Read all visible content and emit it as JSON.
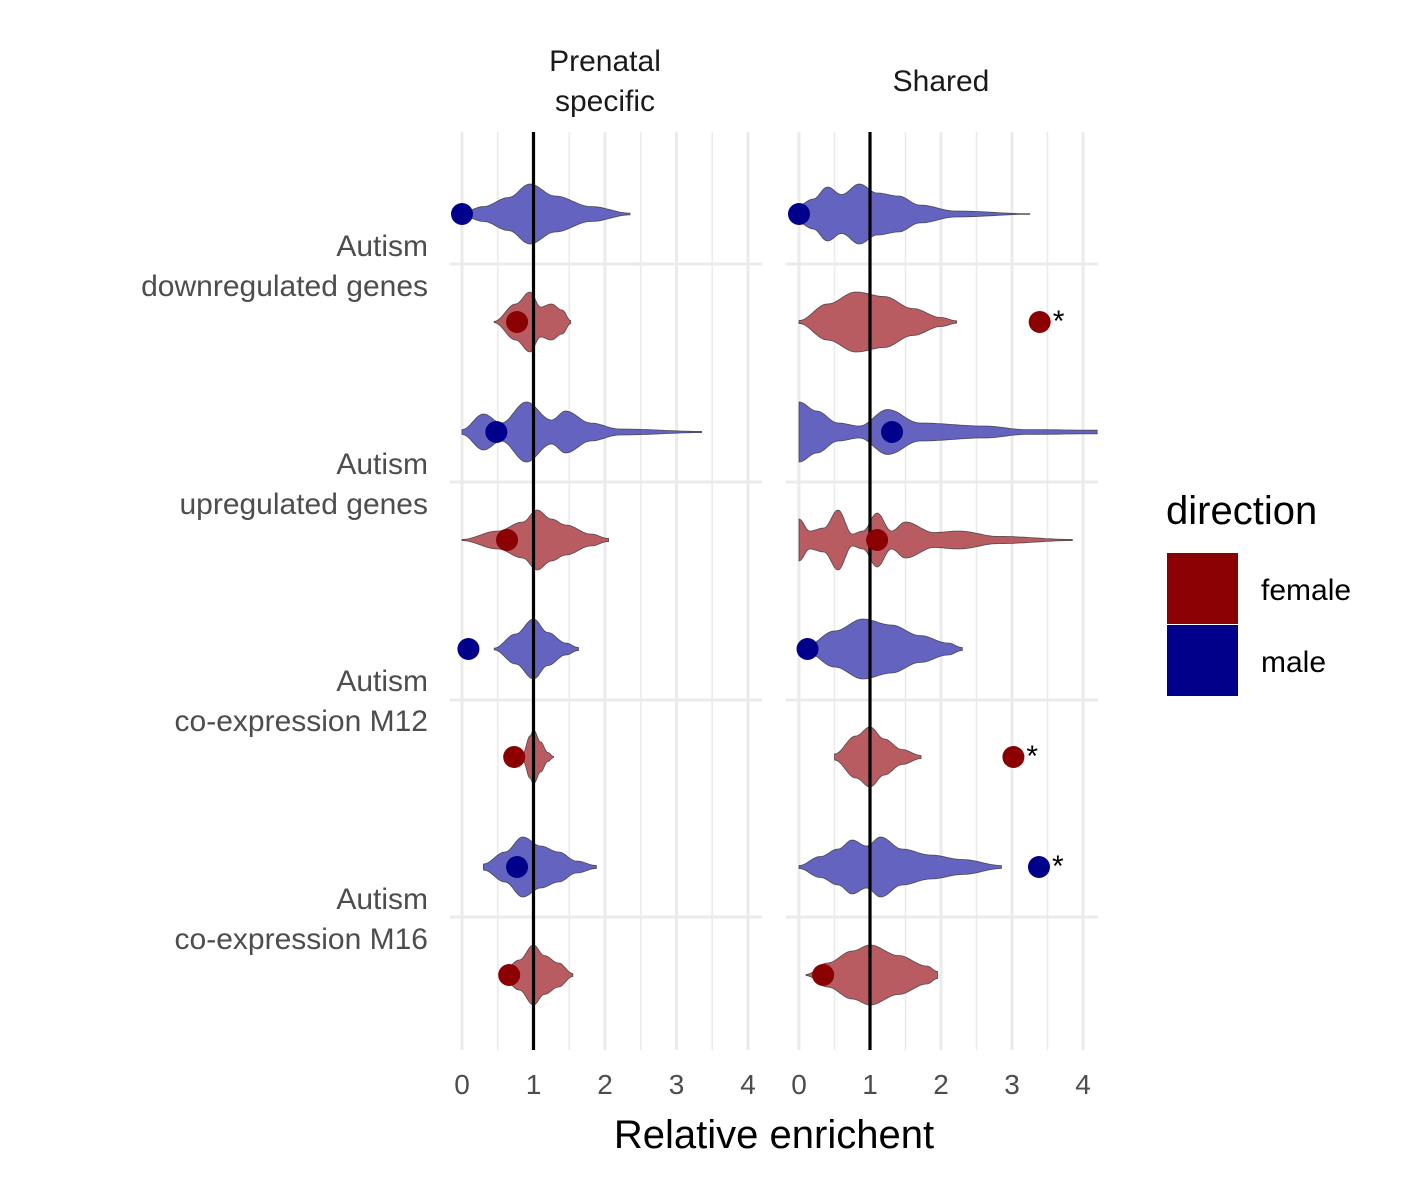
{
  "chart_data": {
    "type": "violin",
    "title": "",
    "xlabel": "Relative enrichent",
    "ylabel": "",
    "xlim": [
      0,
      4
    ],
    "xticks": [
      "0",
      "1",
      "2",
      "3",
      "4"
    ],
    "reference_line_x": 1,
    "grid": true,
    "facets": [
      "Prenatal\nspecific",
      "Shared"
    ],
    "categories": [
      "Autism\ndownregulated genes",
      "Autism\nupregulated genes",
      "Autism\nco-expression M12",
      "Autism\nco-expression M16"
    ],
    "legend": {
      "title": "direction",
      "position": "right",
      "entries": [
        {
          "label": "female",
          "color": "#8B0000"
        },
        {
          "label": "male",
          "color": "#00008B"
        }
      ]
    },
    "violin_colors": {
      "female": "#B85C62",
      "male": "#6464C0"
    },
    "significance_marker": "*",
    "observed": [
      {
        "facet": 0,
        "category": 0,
        "direction": "male",
        "x": 0.0,
        "sig": false
      },
      {
        "facet": 0,
        "category": 0,
        "direction": "female",
        "x": 0.77,
        "sig": false
      },
      {
        "facet": 0,
        "category": 1,
        "direction": "male",
        "x": 0.48,
        "sig": false
      },
      {
        "facet": 0,
        "category": 1,
        "direction": "female",
        "x": 0.63,
        "sig": false
      },
      {
        "facet": 0,
        "category": 2,
        "direction": "male",
        "x": 0.09,
        "sig": false
      },
      {
        "facet": 0,
        "category": 2,
        "direction": "female",
        "x": 0.73,
        "sig": false
      },
      {
        "facet": 0,
        "category": 3,
        "direction": "male",
        "x": 0.77,
        "sig": false
      },
      {
        "facet": 0,
        "category": 3,
        "direction": "female",
        "x": 0.66,
        "sig": false
      },
      {
        "facet": 1,
        "category": 0,
        "direction": "male",
        "x": 0.0,
        "sig": false
      },
      {
        "facet": 1,
        "category": 0,
        "direction": "female",
        "x": 3.39,
        "sig": true
      },
      {
        "facet": 1,
        "category": 1,
        "direction": "male",
        "x": 1.31,
        "sig": false
      },
      {
        "facet": 1,
        "category": 1,
        "direction": "female",
        "x": 1.1,
        "sig": false
      },
      {
        "facet": 1,
        "category": 2,
        "direction": "male",
        "x": 0.12,
        "sig": false
      },
      {
        "facet": 1,
        "category": 2,
        "direction": "female",
        "x": 3.02,
        "sig": true
      },
      {
        "facet": 1,
        "category": 3,
        "direction": "male",
        "x": 3.38,
        "sig": true
      },
      {
        "facet": 1,
        "category": 3,
        "direction": "female",
        "x": 0.34,
        "sig": false
      }
    ],
    "null_distributions": [
      {
        "facet": 0,
        "category": 0,
        "direction": "male",
        "profile": [
          [
            0,
            0.05
          ],
          [
            0.3,
            0.25
          ],
          [
            0.65,
            0.55
          ],
          [
            0.95,
            1.0
          ],
          [
            1.3,
            0.6
          ],
          [
            1.8,
            0.25
          ],
          [
            2.35,
            0.03
          ]
        ]
      },
      {
        "facet": 0,
        "category": 0,
        "direction": "female",
        "profile": [
          [
            0.45,
            0.02
          ],
          [
            0.75,
            0.6
          ],
          [
            0.95,
            1.0
          ],
          [
            1.1,
            0.5
          ],
          [
            1.25,
            0.6
          ],
          [
            1.4,
            0.4
          ],
          [
            1.52,
            0.05
          ]
        ]
      },
      {
        "facet": 0,
        "category": 1,
        "direction": "male",
        "profile": [
          [
            0,
            0.08
          ],
          [
            0.3,
            0.6
          ],
          [
            0.55,
            0.3
          ],
          [
            0.9,
            1.0
          ],
          [
            1.25,
            0.4
          ],
          [
            1.45,
            0.7
          ],
          [
            1.8,
            0.3
          ],
          [
            2.2,
            0.1
          ],
          [
            3.35,
            0.02
          ]
        ]
      },
      {
        "facet": 0,
        "category": 1,
        "direction": "female",
        "profile": [
          [
            0,
            0.02
          ],
          [
            0.5,
            0.3
          ],
          [
            0.85,
            0.6
          ],
          [
            1.05,
            1.0
          ],
          [
            1.25,
            0.7
          ],
          [
            1.45,
            0.5
          ],
          [
            1.8,
            0.2
          ],
          [
            2.05,
            0.05
          ]
        ]
      },
      {
        "facet": 0,
        "category": 2,
        "direction": "male",
        "profile": [
          [
            0.45,
            0.03
          ],
          [
            0.75,
            0.5
          ],
          [
            1.0,
            1.0
          ],
          [
            1.2,
            0.55
          ],
          [
            1.45,
            0.2
          ],
          [
            1.63,
            0.05
          ]
        ]
      },
      {
        "facet": 0,
        "category": 2,
        "direction": "female",
        "profile": [
          [
            0.85,
            0.1
          ],
          [
            0.95,
            0.7
          ],
          [
            1.0,
            0.9
          ],
          [
            1.1,
            0.5
          ],
          [
            1.2,
            0.15
          ],
          [
            1.28,
            0.02
          ]
        ]
      },
      {
        "facet": 0,
        "category": 3,
        "direction": "male",
        "profile": [
          [
            0.3,
            0.1
          ],
          [
            0.6,
            0.5
          ],
          [
            0.85,
            1.0
          ],
          [
            1.1,
            0.7
          ],
          [
            1.35,
            0.5
          ],
          [
            1.6,
            0.2
          ],
          [
            1.88,
            0.05
          ]
        ]
      },
      {
        "facet": 0,
        "category": 3,
        "direction": "female",
        "profile": [
          [
            0.55,
            0.05
          ],
          [
            0.8,
            0.5
          ],
          [
            1.0,
            1.0
          ],
          [
            1.15,
            0.65
          ],
          [
            1.35,
            0.4
          ],
          [
            1.55,
            0.05
          ]
        ]
      },
      {
        "facet": 1,
        "category": 0,
        "direction": "male",
        "profile": [
          [
            0,
            0.3
          ],
          [
            0.2,
            0.5
          ],
          [
            0.4,
            0.9
          ],
          [
            0.6,
            0.65
          ],
          [
            0.85,
            1.0
          ],
          [
            1.1,
            0.7
          ],
          [
            1.4,
            0.6
          ],
          [
            1.7,
            0.3
          ],
          [
            2.2,
            0.1
          ],
          [
            3.25,
            0.01
          ]
        ]
      },
      {
        "facet": 1,
        "category": 0,
        "direction": "female",
        "profile": [
          [
            0,
            0.05
          ],
          [
            0.4,
            0.6
          ],
          [
            0.8,
            1.0
          ],
          [
            1.2,
            0.85
          ],
          [
            1.6,
            0.45
          ],
          [
            2.0,
            0.15
          ],
          [
            2.22,
            0.04
          ]
        ]
      },
      {
        "facet": 1,
        "category": 1,
        "direction": "male",
        "profile": [
          [
            0,
            1.0
          ],
          [
            0.25,
            0.7
          ],
          [
            0.55,
            0.3
          ],
          [
            0.85,
            0.2
          ],
          [
            1.25,
            0.75
          ],
          [
            1.7,
            0.3
          ],
          [
            2.6,
            0.2
          ],
          [
            3.2,
            0.08
          ],
          [
            4.2,
            0.06
          ]
        ]
      },
      {
        "facet": 1,
        "category": 1,
        "direction": "female",
        "profile": [
          [
            0,
            0.7
          ],
          [
            0.15,
            0.3
          ],
          [
            0.35,
            0.4
          ],
          [
            0.55,
            1.0
          ],
          [
            0.75,
            0.2
          ],
          [
            0.9,
            0.3
          ],
          [
            1.1,
            0.9
          ],
          [
            1.3,
            0.3
          ],
          [
            1.5,
            0.6
          ],
          [
            1.9,
            0.25
          ],
          [
            2.25,
            0.3
          ],
          [
            2.8,
            0.12
          ],
          [
            3.85,
            0.02
          ]
        ]
      },
      {
        "facet": 1,
        "category": 2,
        "direction": "male",
        "profile": [
          [
            0.1,
            0.1
          ],
          [
            0.5,
            0.6
          ],
          [
            0.9,
            1.0
          ],
          [
            1.3,
            0.8
          ],
          [
            1.7,
            0.45
          ],
          [
            2.1,
            0.2
          ],
          [
            2.3,
            0.05
          ]
        ]
      },
      {
        "facet": 1,
        "category": 2,
        "direction": "female",
        "profile": [
          [
            0.5,
            0.1
          ],
          [
            0.8,
            0.7
          ],
          [
            1.0,
            1.0
          ],
          [
            1.2,
            0.6
          ],
          [
            1.45,
            0.25
          ],
          [
            1.72,
            0.05
          ]
        ]
      },
      {
        "facet": 1,
        "category": 3,
        "direction": "male",
        "profile": [
          [
            0,
            0.05
          ],
          [
            0.3,
            0.35
          ],
          [
            0.55,
            0.6
          ],
          [
            0.75,
            0.9
          ],
          [
            0.95,
            0.7
          ],
          [
            1.15,
            1.0
          ],
          [
            1.45,
            0.6
          ],
          [
            1.85,
            0.4
          ],
          [
            2.3,
            0.25
          ],
          [
            2.85,
            0.05
          ]
        ]
      },
      {
        "facet": 1,
        "category": 3,
        "direction": "female",
        "profile": [
          [
            0.1,
            0.02
          ],
          [
            0.4,
            0.4
          ],
          [
            0.75,
            0.8
          ],
          [
            1.0,
            1.0
          ],
          [
            1.4,
            0.65
          ],
          [
            1.8,
            0.3
          ],
          [
            1.95,
            0.12
          ]
        ]
      }
    ]
  }
}
